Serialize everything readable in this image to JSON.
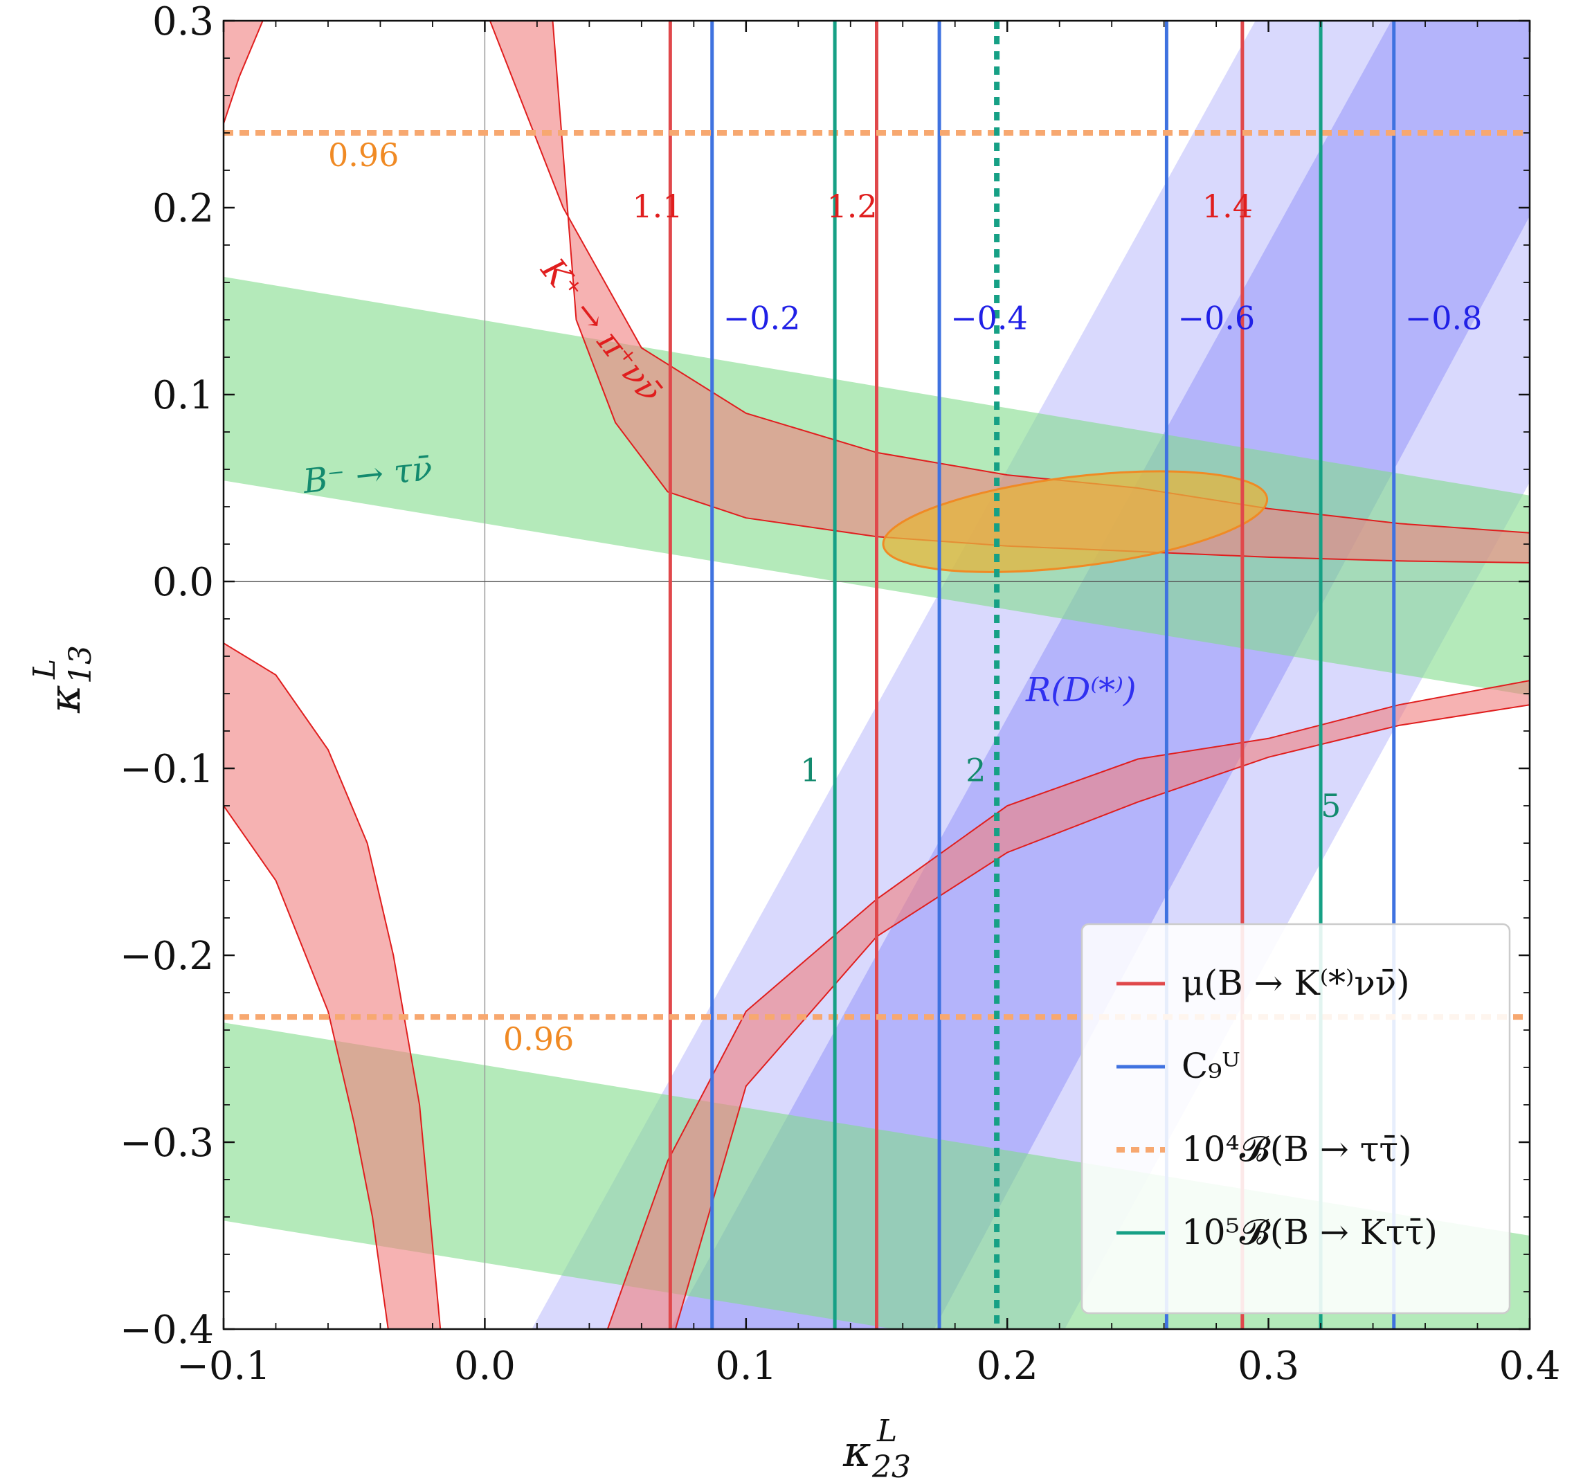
{
  "chart_data": {
    "type": "line",
    "title": "",
    "xlabel": {
      "base": "κ",
      "sup": "L",
      "sub": "23"
    },
    "ylabel": {
      "base": "κ",
      "sup": "L",
      "sub": "13"
    },
    "xlim": [
      -0.1,
      0.4
    ],
    "ylim": [
      -0.4,
      0.3
    ],
    "xticks": [
      -0.1,
      0.0,
      0.1,
      0.2,
      0.3,
      0.4
    ],
    "xtick_labels": [
      "−0.1",
      "0.0",
      "0.1",
      "0.2",
      "0.3",
      "0.4"
    ],
    "yticks": [
      -0.4,
      -0.3,
      -0.2,
      -0.1,
      0.0,
      0.1,
      0.2,
      0.3
    ],
    "ytick_labels": [
      "−0.4",
      "−0.3",
      "−0.2",
      "−0.1",
      "0.0",
      "0.1",
      "0.2",
      "0.3"
    ],
    "grid": false,
    "legend_position": "bottom-right",
    "colors": {
      "kpinunu": "#f07f7f",
      "btaunu": "#82dc8c",
      "rd": "#9b9bfa",
      "mu_line": "#e0484b",
      "c9_line": "#3f72e0",
      "btautau": "#f7a870",
      "bktautau": "#16a085",
      "ellipse": "#e5b43c"
    },
    "bands": {
      "B_to_taunu": {
        "upper": {
          "x": [
            -0.1,
            0.4
          ],
          "y": [
            0.163,
            0.046
          ]
        },
        "lower": {
          "x": [
            -0.1,
            0.4
          ],
          "y": [
            0.054,
            -0.061
          ]
        },
        "upper2": {
          "x": [
            -0.1,
            0.4
          ],
          "y": [
            -0.236,
            -0.35
          ]
        },
        "lower2": {
          "x": [
            -0.1,
            0.4
          ],
          "y": [
            -0.342,
            -0.455
          ]
        }
      },
      "R_D_inner": {
        "bottom_x": [
          0.071,
          0.172
        ],
        "top_x": [
          0.347,
          0.44
        ]
      },
      "R_D_outer": {
        "bottom_x": [
          0.018,
          0.222
        ],
        "top_x": [
          0.295,
          0.497
        ]
      },
      "K_to_pinunu_upper": {
        "outer": {
          "x": [
            0.002,
            0.03,
            0.06,
            0.1,
            0.15,
            0.2,
            0.25,
            0.3,
            0.35,
            0.4
          ],
          "y": [
            0.3,
            0.2,
            0.125,
            0.09,
            0.069,
            0.057,
            0.05,
            0.039,
            0.031,
            0.026
          ]
        },
        "inner": {
          "x": [
            0.026,
            0.035,
            0.05,
            0.07,
            0.1,
            0.15,
            0.2,
            0.25,
            0.3,
            0.35,
            0.4
          ],
          "y": [
            0.3,
            0.14,
            0.085,
            0.048,
            0.034,
            0.024,
            0.019,
            0.016,
            0.013,
            0.011,
            0.01
          ]
        },
        "corner": {
          "x": [
            -0.1,
            -0.094,
            -0.085
          ],
          "y": [
            0.245,
            0.27,
            0.3
          ]
        }
      },
      "K_to_pinunu_lower": {
        "outer": {
          "x": [
            0.047,
            0.07,
            0.1,
            0.15,
            0.2,
            0.25,
            0.3,
            0.35,
            0.4
          ],
          "y": [
            -0.4,
            -0.31,
            -0.23,
            -0.17,
            -0.12,
            -0.095,
            -0.084,
            -0.066,
            -0.053
          ]
        },
        "inner": {
          "x": [
            0.073,
            0.1,
            0.15,
            0.2,
            0.25,
            0.3,
            0.35,
            0.4
          ],
          "y": [
            -0.4,
            -0.27,
            -0.19,
            -0.145,
            -0.118,
            -0.094,
            -0.077,
            -0.066
          ]
        }
      },
      "K_to_pinunu_left": {
        "outer": {
          "x": [
            -0.1,
            -0.08,
            -0.06,
            -0.045,
            -0.035,
            -0.025,
            -0.017
          ],
          "y": [
            -0.033,
            -0.05,
            -0.09,
            -0.14,
            -0.2,
            -0.28,
            -0.4
          ]
        },
        "inner": {
          "x": [
            -0.1,
            -0.08,
            -0.06,
            -0.05,
            -0.043,
            -0.037
          ],
          "y": [
            -0.12,
            -0.16,
            -0.23,
            -0.29,
            -0.34,
            -0.4
          ]
        }
      }
    },
    "ellipse": {
      "cx": 0.226,
      "cy": 0.032,
      "rx": 0.074,
      "ry": 0.024,
      "angle_deg": -7
    },
    "series": [
      {
        "name": "μ(B → K^(*)νν̄)",
        "style": "solid",
        "x_values": [
          0.071,
          0.15,
          0.29
        ],
        "labels": [
          "1.1",
          "1.2",
          "1.4"
        ]
      },
      {
        "name": "C^U_9",
        "style": "solid",
        "x_values": [
          0.087,
          0.174,
          0.261,
          0.348
        ],
        "labels": [
          "−0.2",
          "−0.4",
          "−0.6",
          "−0.8"
        ]
      },
      {
        "name": "10^4 𝓑(B → ττ̄)",
        "style": "dashed",
        "y_values": [
          0.24,
          -0.233
        ],
        "labels": [
          "0.96",
          "0.96"
        ]
      },
      {
        "name": "10^5 𝓑(B → Kττ̄)",
        "style": "solid",
        "x_values": [
          0.134,
          0.196,
          0.32
        ],
        "labels": [
          "1",
          "2",
          "5"
        ]
      }
    ],
    "annotations": {
      "kpinunu": "K⁺ → π⁺νν̄",
      "btaunu": "B⁻ → τν̄",
      "rd": "R(D⁽*⁾)"
    }
  },
  "legend": {
    "items": [
      {
        "label": "μ(B → K⁽*⁾νν̄)",
        "color": "#e0484b",
        "dash": false
      },
      {
        "label": "C₉ᵁ",
        "color": "#3f72e0",
        "dash": false
      },
      {
        "label": "10⁴𝓑(B → ττ̄)",
        "color": "#f7a870",
        "dash": true
      },
      {
        "label": "10⁵𝓑(B → Kττ̄)",
        "color": "#16a085",
        "dash": false
      }
    ]
  }
}
